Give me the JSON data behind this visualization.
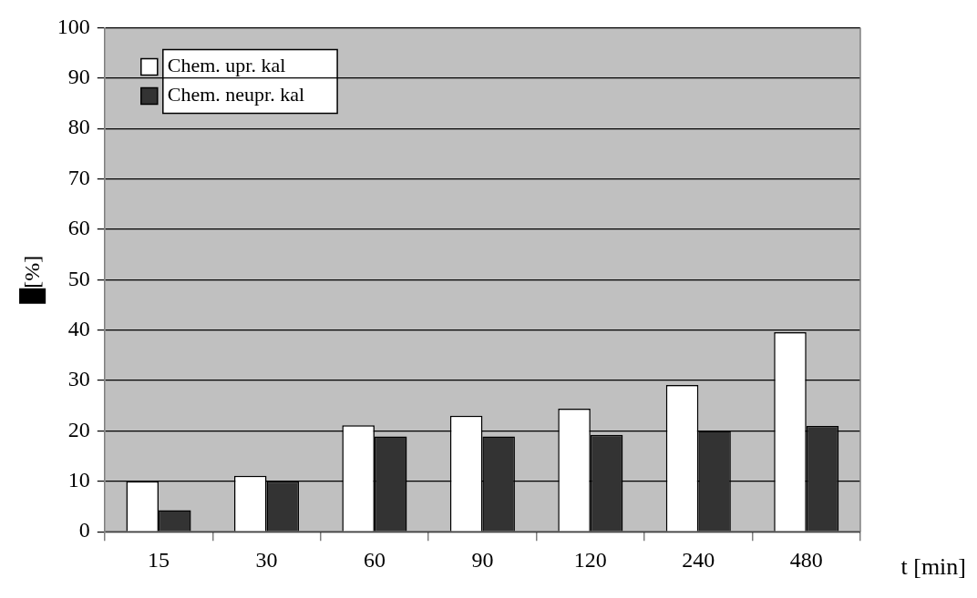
{
  "chart_data": {
    "type": "bar",
    "xlabel": "t [min]",
    "ylabel": "█[%]",
    "categories": [
      "15",
      "30",
      "60",
      "90",
      "120",
      "240",
      "480"
    ],
    "series": [
      {
        "name": "Chem. upr. kal",
        "color": "#ffffff",
        "values": [
          10,
          11.1,
          21.1,
          23,
          24.4,
          29.1,
          39.6
        ]
      },
      {
        "name": "Chem. neupr. kal",
        "color": "#333333",
        "values": [
          4.3,
          10,
          18.9,
          18.9,
          19.2,
          20,
          21
        ]
      }
    ],
    "ylim": [
      0,
      100
    ],
    "yticks": [
      0,
      10,
      20,
      30,
      40,
      50,
      60,
      70,
      80,
      90,
      100
    ],
    "grid": "y",
    "legend": "top left"
  }
}
